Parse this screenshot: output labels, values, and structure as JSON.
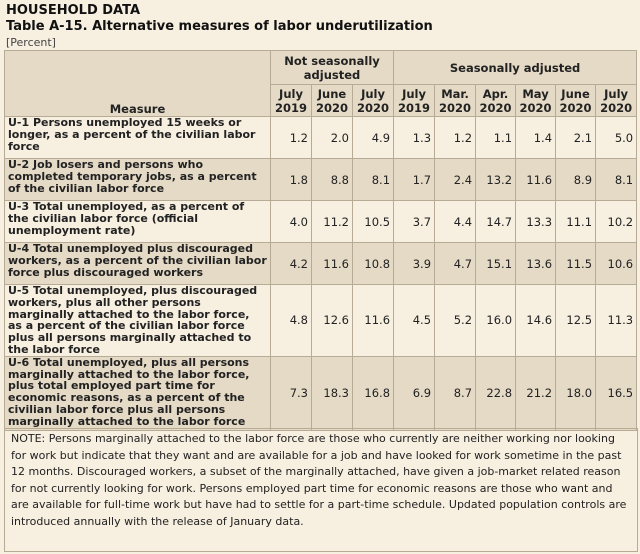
{
  "header": {
    "section": "HOUSEHOLD DATA",
    "title": "Table A-15. Alternative measures of labor underutilization",
    "unit": "[Percent]"
  },
  "table": {
    "measure_label": "Measure",
    "group_nsa": "Not seasonally adjusted",
    "group_sa": "Seasonally adjusted",
    "columns": [
      {
        "month": "July",
        "year": "2019"
      },
      {
        "month": "June",
        "year": "2020"
      },
      {
        "month": "July",
        "year": "2020"
      },
      {
        "month": "July",
        "year": "2019"
      },
      {
        "month": "Mar.",
        "year": "2020"
      },
      {
        "month": "Apr.",
        "year": "2020"
      },
      {
        "month": "May",
        "year": "2020"
      },
      {
        "month": "June",
        "year": "2020"
      },
      {
        "month": "July",
        "year": "2020"
      }
    ],
    "rows": [
      {
        "desc": "U-1 Persons unemployed 15 weeks or longer, as a percent of the civilian labor force",
        "values": [
          "1.2",
          "2.0",
          "4.9",
          "1.3",
          "1.2",
          "1.1",
          "1.4",
          "2.1",
          "5.0"
        ]
      },
      {
        "desc": "U-2 Job losers and persons who completed temporary jobs, as a percent of the civilian labor force",
        "values": [
          "1.8",
          "8.8",
          "8.1",
          "1.7",
          "2.4",
          "13.2",
          "11.6",
          "8.9",
          "8.1"
        ]
      },
      {
        "desc": "U-3 Total unemployed, as a percent of the civilian labor force (official unemployment rate)",
        "values": [
          "4.0",
          "11.2",
          "10.5",
          "3.7",
          "4.4",
          "14.7",
          "13.3",
          "11.1",
          "10.2"
        ]
      },
      {
        "desc": "U-4 Total unemployed plus discouraged workers, as a percent of the civilian labor force plus discouraged workers",
        "values": [
          "4.2",
          "11.6",
          "10.8",
          "3.9",
          "4.7",
          "15.1",
          "13.6",
          "11.5",
          "10.6"
        ]
      },
      {
        "desc": "U-5 Total unemployed, plus discouraged workers, plus all other persons marginally attached to the labor force, as a percent of the civilian labor force plus all persons marginally attached to the labor force",
        "values": [
          "4.8",
          "12.6",
          "11.6",
          "4.5",
          "5.2",
          "16.0",
          "14.6",
          "12.5",
          "11.3"
        ]
      },
      {
        "desc": "U-6 Total unemployed, plus all persons marginally attached to the labor force, plus total employed part time for economic reasons, as a percent of the civilian labor force plus all persons marginally attached to the labor force",
        "values": [
          "7.3",
          "18.3",
          "16.8",
          "6.9",
          "8.7",
          "22.8",
          "21.2",
          "18.0",
          "16.5"
        ]
      }
    ]
  },
  "note": "NOTE: Persons marginally attached to the labor force are those who currently are neither working nor looking for work but indicate that they want and are available for a job and have looked for work sometime in the past 12 months. Discouraged workers, a subset of the marginally attached, have given a job-market related reason for not currently looking for work. Persons employed part time for economic reasons are those who want and are available for full-time work but have had to settle for a part-time schedule. Updated population controls are introduced annually with the release of January data."
}
